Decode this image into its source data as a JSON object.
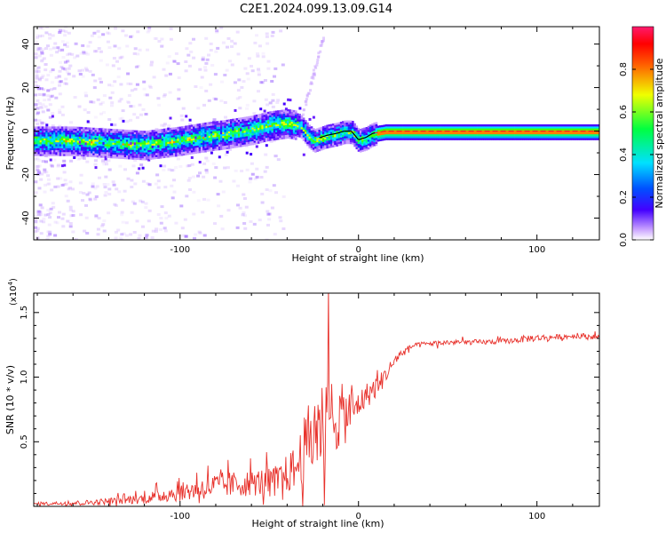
{
  "page": {
    "title": "C2E1.2024.099.13.09.G14"
  },
  "chart_data": [
    {
      "type": "heatmap",
      "id": "spectrogram",
      "xlabel": "Height of straight line (km)",
      "ylabel": "Frequency (Hz)",
      "xlim": [
        -182,
        135
      ],
      "ylim": [
        -50,
        48
      ],
      "xticks": [
        -100,
        0,
        100
      ],
      "xtick_labels": [
        "-100",
        "0",
        "100"
      ],
      "yticks": [
        -40,
        -20,
        0,
        20,
        40
      ],
      "ytick_labels": [
        "-40",
        "-20",
        "0",
        "20",
        "40"
      ],
      "ridge": {
        "x": [
          -182,
          -160,
          -140,
          -120,
          -100,
          -85,
          -75,
          -60,
          -50,
          -40,
          -33,
          -28,
          -25,
          -18,
          -12,
          -8,
          -4,
          0,
          4,
          8,
          15,
          30,
          60,
          100,
          135
        ],
        "freq": [
          -4,
          -4,
          -5,
          -6,
          -4,
          -2,
          -1,
          1,
          3,
          4,
          3,
          -2,
          -4,
          -2,
          -1,
          0,
          0,
          -4,
          -3,
          -1,
          0,
          0,
          0,
          0,
          0
        ]
      },
      "colorbar": {
        "label": "Normalized spectral amplitude",
        "range": [
          0,
          1
        ],
        "ticks": [
          0.0,
          0.2,
          0.4,
          0.6,
          0.8
        ],
        "tick_labels": [
          "0.0",
          "0.2",
          "0.4",
          "0.6",
          "0.8"
        ]
      }
    },
    {
      "type": "line",
      "id": "snr",
      "xlabel": "Height of straight line (km)",
      "ylabel": "SNR (10 * v/v)",
      "y_multiplier": "(x10",
      "y_multiplier_exp": "4",
      "y_multiplier_close": ")",
      "xlim": [
        -182,
        135
      ],
      "ylim": [
        0,
        1.65
      ],
      "xticks": [
        -100,
        0,
        100
      ],
      "xtick_labels": [
        "-100",
        "0",
        "100"
      ],
      "yticks": [
        0.5,
        1.0,
        1.5
      ],
      "ytick_labels": [
        "0.5",
        "1.0",
        "1.5"
      ],
      "color": "#e8322c",
      "series": [
        {
          "name": "SNR",
          "x": [
            -182,
            -150,
            -120,
            -100,
            -80,
            -60,
            -45,
            -35,
            -28,
            -22,
            -16,
            -10,
            -6,
            -2,
            2,
            6,
            12,
            18,
            22,
            26,
            30,
            40,
            55,
            70,
            85,
            95,
            110,
            125,
            135
          ],
          "mean": [
            0.02,
            0.03,
            0.06,
            0.11,
            0.16,
            0.18,
            0.2,
            0.3,
            0.5,
            0.62,
            0.68,
            0.7,
            0.72,
            0.76,
            0.82,
            0.88,
            0.95,
            1.08,
            1.16,
            1.2,
            1.24,
            1.26,
            1.27,
            1.27,
            1.28,
            1.3,
            1.31,
            1.32,
            1.31
          ],
          "spread": [
            0.01,
            0.02,
            0.04,
            0.07,
            0.1,
            0.1,
            0.12,
            0.18,
            0.3,
            0.35,
            0.32,
            0.25,
            0.22,
            0.12,
            0.1,
            0.1,
            0.08,
            0.05,
            0.04,
            0.03,
            0.02,
            0.02,
            0.02,
            0.02,
            0.02,
            0.03,
            0.02,
            0.02,
            0.02
          ]
        }
      ]
    }
  ]
}
